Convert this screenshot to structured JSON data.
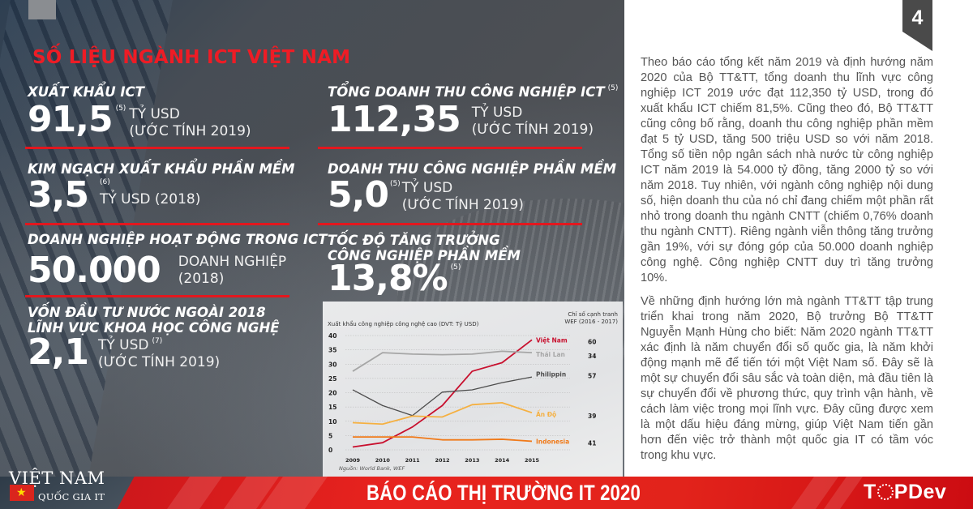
{
  "page": {
    "number": "4",
    "section_title": "SỐ LIỆU NGÀNH ICT VIỆT NAM"
  },
  "stats": [
    {
      "label": "XUẤT KHẨU ICT",
      "value": "91,5",
      "ref": "(5)",
      "unit_line1": "TỶ USD",
      "unit_line2": "(ƯỚC TÍNH 2019)"
    },
    {
      "label": "TỔNG DOANH THU CÔNG NGHIỆP ICT",
      "label_ref": "(5)",
      "value": "112,35",
      "unit_line1": "TỶ USD",
      "unit_line2": "(ƯỚC TÍNH 2019)"
    },
    {
      "label": "KIM NGẠCH XUẤT KHẨU PHẦN MỀM",
      "value": "3,5",
      "ref": "(6)",
      "unit_line1": "TỶ USD (2018)"
    },
    {
      "label": "DOANH THU CÔNG NGHIỆP PHẦN MỀM",
      "value": "5,0",
      "ref": "(5)",
      "unit_line1": "TỶ USD",
      "unit_line2": "(ƯỚC TÍNH 2019)"
    },
    {
      "label": "DOANH NGHIỆP HOẠT ĐỘNG TRONG ICT",
      "value": "50.000",
      "unit_line1": "DOANH NGHIỆP",
      "unit_line2": "(2018)"
    },
    {
      "label_line1": "TỐC ĐỘ TĂNG TRƯỞNG",
      "label_line2": "CÔNG NGHIỆP PHẦN MỀM",
      "value": "13,8%",
      "ref": "(5)"
    },
    {
      "label_line1": "VỐN ĐẦU TƯ NƯỚC NGOÀI 2018",
      "label_line2": "LĨNH VỰC KHOA HỌC CÔNG NGHỆ",
      "value": "2,1",
      "ref": "(7)",
      "unit_line1": "TỶ USD",
      "unit_line2": "(ƯỚC TÍNH 2019)"
    }
  ],
  "chart_data": {
    "type": "line",
    "title": "Xuất khẩu công nghiệp công nghệ cao (DVT: Tỷ USD)",
    "side_title_line1": "Chỉ số cạnh tranh",
    "side_title_line2": "WEF (2016 - 2017)",
    "x": [
      "2009",
      "2010",
      "2011",
      "2012",
      "2013",
      "2014",
      "2015"
    ],
    "yticks": [
      "40",
      "35",
      "30",
      "25",
      "20",
      "15",
      "10",
      "5",
      "0"
    ],
    "ylim": [
      0,
      40
    ],
    "grid": true,
    "source": "Nguồn: World Bank, WEF",
    "series": [
      {
        "name": "Việt Nam",
        "color": "#c8102e",
        "wef": "60",
        "values": [
          1,
          2.5,
          8,
          15.5,
          27.5,
          30.5,
          38.5
        ]
      },
      {
        "name": "Thái Lan",
        "color": "#a6a6a6",
        "wef": "34",
        "values": [
          27.5,
          34,
          33.5,
          33.3,
          33.5,
          34.5,
          34
        ]
      },
      {
        "name": "Philippin",
        "color": "#4d4d4d",
        "wef": "57",
        "values": [
          21,
          15.5,
          12,
          20.2,
          21,
          23.5,
          25.5
        ]
      },
      {
        "name": "Ấn Độ",
        "color": "#f5b041",
        "wef": "39",
        "values": [
          9.5,
          9,
          11.8,
          11.5,
          15.8,
          16.5,
          13
        ]
      },
      {
        "name": "Indonesia",
        "color": "#f07a1a",
        "wef": "41",
        "values": [
          4.5,
          4.5,
          4.5,
          3.5,
          3.5,
          3.7,
          3
        ]
      }
    ]
  },
  "article": {
    "paragraph1": "Theo báo cáo tổng kết năm 2019 và định hướng năm 2020 của Bộ TT&TT, tổng doanh thu lĩnh vực công nghiệp ICT 2019 ước đạt 112,350 tỷ USD, trong đó xuất khẩu ICT chiếm 81,5%. Cũng theo đó, Bộ TT&TT cũng công bố rằng, doanh thu công nghiệp phần mềm đạt 5 tỷ USD, tăng 500 triệu USD so với năm 2018. Tổng số tiền nộp ngân sách nhà nước từ công nghiệp ICT năm 2019 là 54.000 tỷ đồng, tăng 2000 tỷ so với năm 2018. Tuy nhiên, với ngành công nghiệp nội dung số, hiện doanh thu của nó chỉ đang chiếm một phần rất nhỏ trong doanh thu ngành CNTT (chiếm 0,76% doanh thu ngành CNTT). Riêng ngành viễn thông tăng trưởng gần 19%, với sự đóng góp của 50.000 doanh nghiệp công nghệ. Công nghiệp CNTT duy trì tăng trưởng 10%.",
    "paragraph2": "Về những định hướng lớn mà ngành TT&TT tập trung triển khai trong năm 2020, Bộ trưởng Bộ TT&TT Nguyễn Mạnh Hùng cho biết: Năm 2020 ngành TT&TT xác định là năm chuyển đổi số quốc gia, là năm khởi động mạnh mẽ để tiến tới một Việt Nam số. Đây sẽ là một sự chuyển đổi sâu sắc và toàn diện, mà đầu tiên là sự chuyển đổi về phương thức, quy trình vận hành, về cách làm việc trong mọi lĩnh vực. Đây cũng được xem là một dấu hiệu đáng mừng, giúp Việt Nam tiến gần hơn đến việc trở thành một quốc gia IT có tầm vóc trong khu vực."
  },
  "footer": {
    "logo_title": "VIỆT NAM",
    "logo_subtitle": "QUỐC GIA IT",
    "flag_star": "★",
    "report_title": "BÁO CÁO THỊ TRƯỜNG IT 2020",
    "brand_pre": "T",
    "brand_post": "PDev",
    "colors": {
      "accent": "#e3171e",
      "dark": "#4a4a4a"
    }
  }
}
